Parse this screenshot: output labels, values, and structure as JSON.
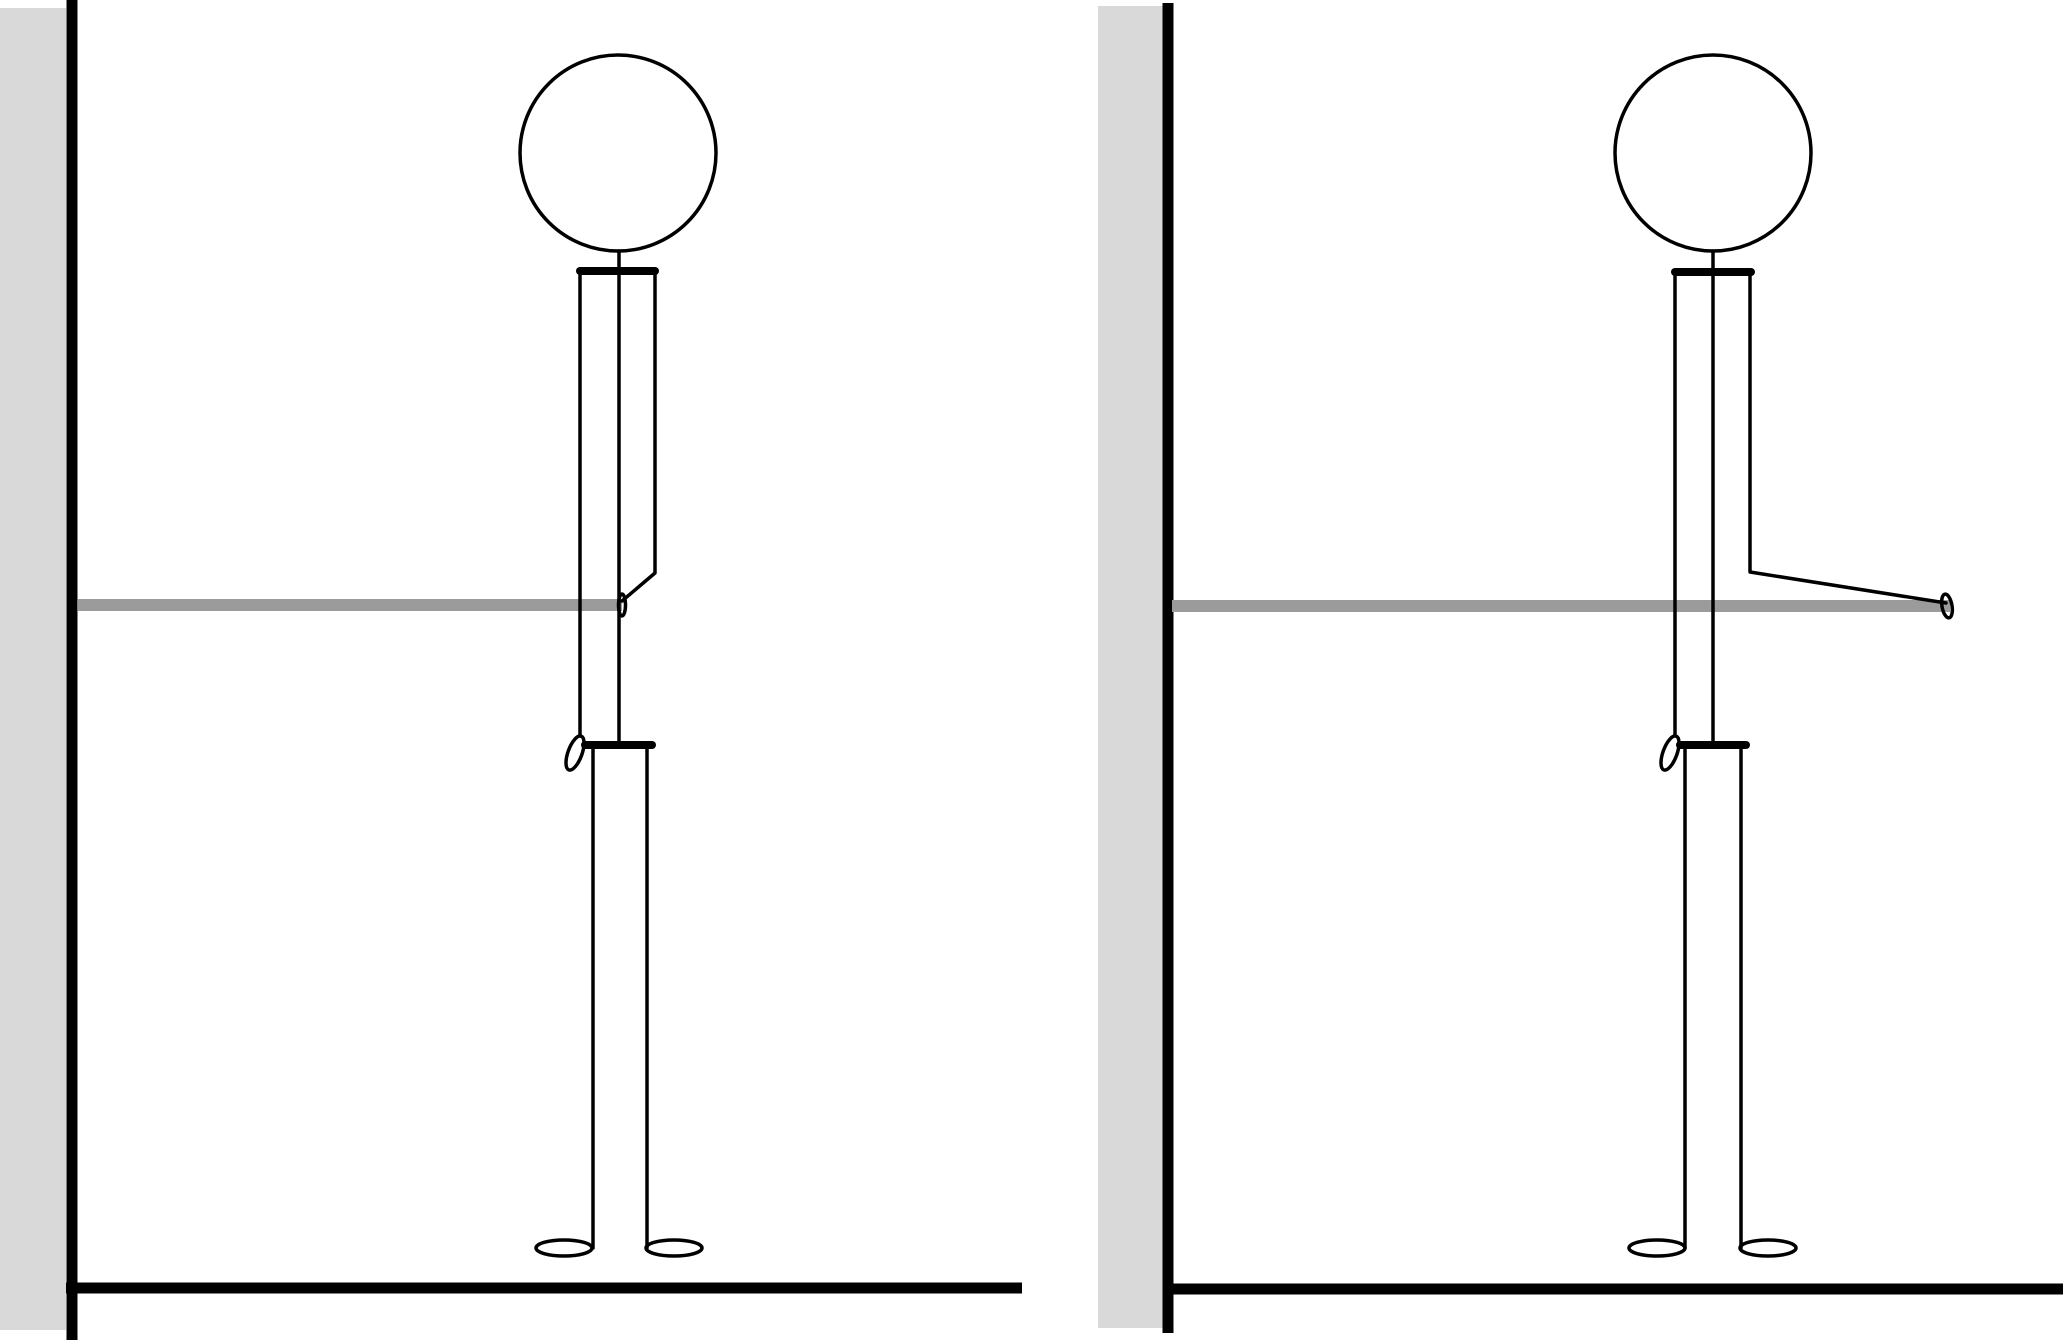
{
  "diagram": {
    "colors": {
      "background": "#ffffff",
      "wall": "#d9d9d9",
      "ink": "#000000",
      "rod": "#9b9b9b"
    },
    "panels": [
      {
        "id": "left",
        "pose": "arm-bent-hand-at-body"
      },
      {
        "id": "right",
        "pose": "arm-extended-hand-at-rod-end"
      }
    ]
  }
}
